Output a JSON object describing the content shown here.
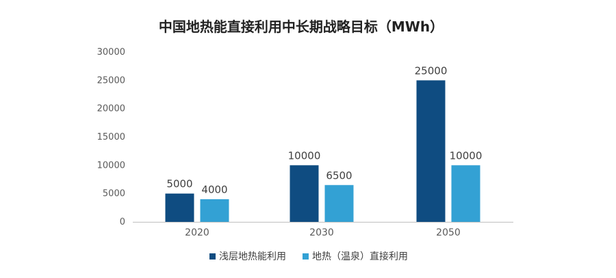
{
  "chart_data": {
    "type": "bar",
    "title": "中国地热能直接利用中长期战略目标（MWh）",
    "categories": [
      "2020",
      "2030",
      "2050"
    ],
    "series": [
      {
        "name": "浅层地热能利用",
        "values": [
          5000,
          10000,
          25000
        ],
        "color": "#0f4c81"
      },
      {
        "name": "地热（温泉）直接利用",
        "values": [
          4000,
          6500,
          10000
        ],
        "color": "#33a1d4"
      }
    ],
    "ylim": [
      0,
      30000
    ],
    "yticks": [
      0,
      5000,
      10000,
      15000,
      20000,
      25000,
      30000
    ],
    "xlabel": "",
    "ylabel": "",
    "grid": false,
    "legend_position": "bottom"
  }
}
